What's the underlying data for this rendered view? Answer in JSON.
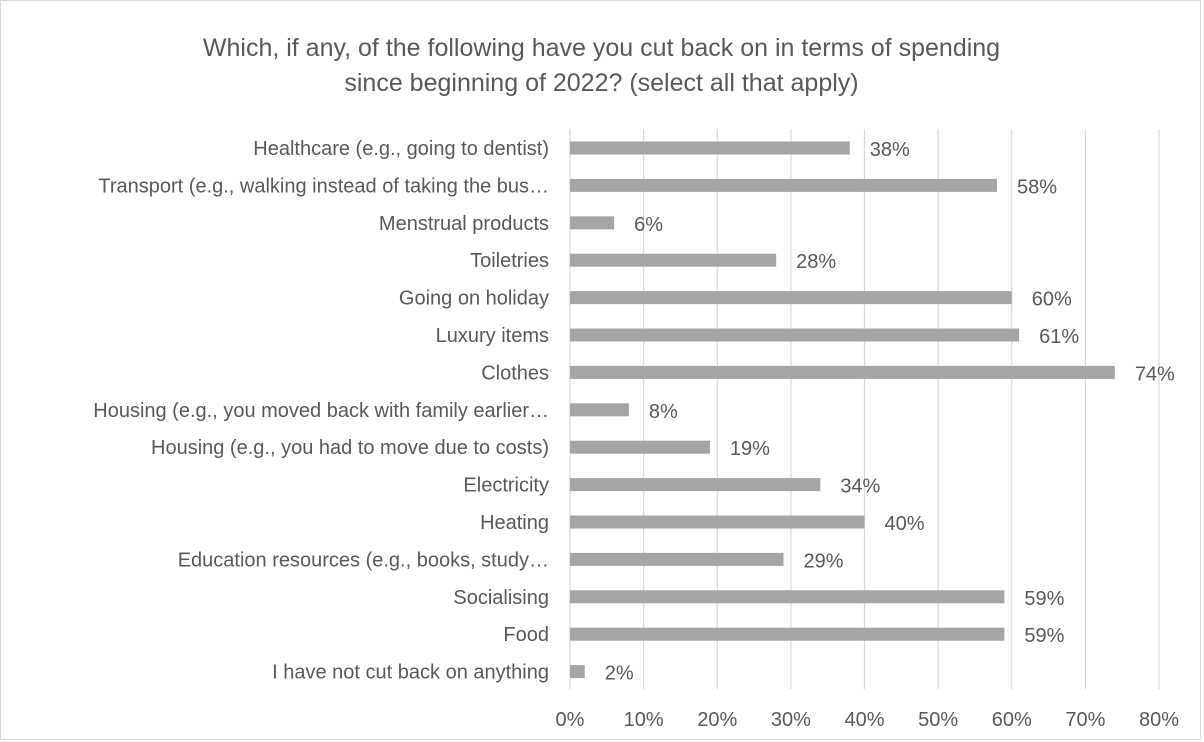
{
  "chart_data": {
    "type": "bar",
    "orientation": "horizontal",
    "title_lines": [
      "Which, if any, of the following have you cut back on in terms of spending",
      "since beginning of 2022? (select all that apply)"
    ],
    "categories": [
      "Healthcare (e.g., going to dentist)",
      "Transport (e.g., walking instead of taking the bus…",
      "Menstrual products",
      "Toiletries",
      "Going on holiday",
      "Luxury items",
      "Clothes",
      "Housing (e.g., you moved back with family earlier…",
      "Housing (e.g., you had to move due to costs)",
      "Electricity",
      "Heating",
      "Education resources (e.g., books, study…",
      "Socialising",
      "Food",
      "I have not cut back on anything"
    ],
    "values": [
      38,
      58,
      6,
      28,
      60,
      61,
      74,
      8,
      19,
      34,
      40,
      29,
      59,
      59,
      2
    ],
    "data_labels": [
      "38%",
      "58%",
      "6%",
      "28%",
      "60%",
      "61%",
      "74%",
      "8%",
      "19%",
      "34%",
      "40%",
      "29%",
      "59%",
      "59%",
      "2%"
    ],
    "x_ticks": [
      "0%",
      "10%",
      "20%",
      "30%",
      "40%",
      "50%",
      "60%",
      "70%",
      "80%"
    ],
    "xlim": [
      0,
      80
    ],
    "gridlines": "vertical",
    "legend": "none",
    "colors": {
      "bar": "#a5a5a5",
      "grid": "#d9d9d9",
      "text": "#595959"
    }
  }
}
